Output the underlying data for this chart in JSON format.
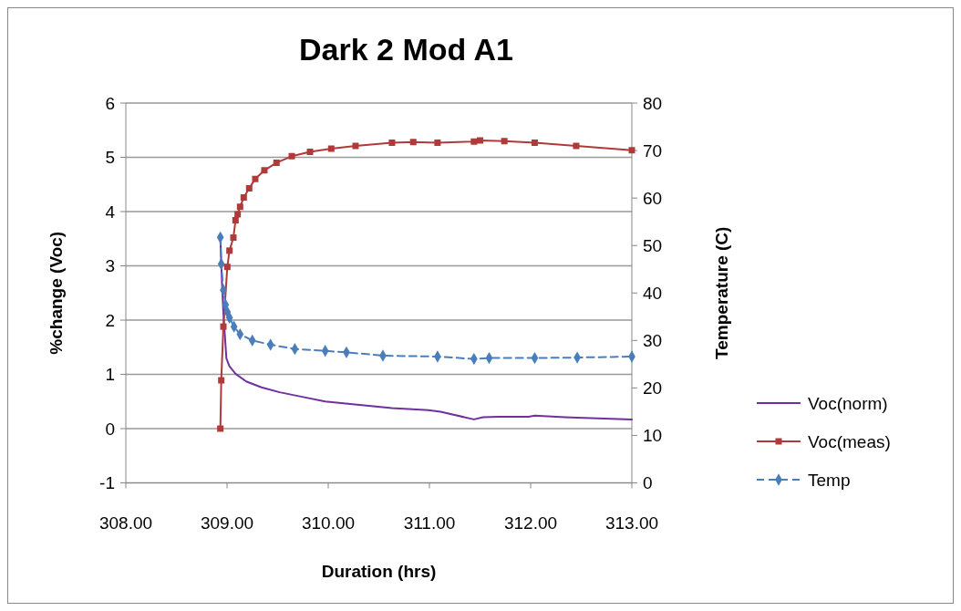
{
  "chart_data": {
    "type": "line",
    "title": "Dark 2 Mod A1",
    "xlabel": "Duration (hrs)",
    "ylabel": "%change (Voc)",
    "y2label": "Temperature (C)",
    "xlim": [
      308,
      313
    ],
    "xticks": [
      {
        "value": 308,
        "label": "308.00"
      },
      {
        "value": 309,
        "label": "309.00"
      },
      {
        "value": 310,
        "label": "310.00"
      },
      {
        "value": 311,
        "label": "311.00"
      },
      {
        "value": 312,
        "label": "312.00"
      },
      {
        "value": 313,
        "label": "313.00"
      }
    ],
    "ylim": [
      -1,
      6
    ],
    "yticks": [
      -1,
      0,
      1,
      2,
      3,
      4,
      5,
      6
    ],
    "y2lim": [
      0,
      80
    ],
    "y2ticks": [
      0,
      10,
      20,
      30,
      40,
      50,
      60,
      70,
      80
    ],
    "grid": "y",
    "legend": "right",
    "series": [
      {
        "name": "Voc(norm)",
        "color": "#7030a0",
        "marker": "none",
        "line_style": "solid",
        "x": [
          308.934,
          308.95,
          308.964,
          308.979,
          308.994,
          309.024,
          309.084,
          309.189,
          309.34,
          309.52,
          309.73,
          309.97,
          310.24,
          310.63,
          310.99,
          311.11,
          311.44,
          311.53,
          311.68,
          311.98,
          312.04,
          312.34,
          312.46,
          313
        ],
        "values": [
          3.52,
          2.69,
          2.13,
          1.71,
          1.29,
          1.15,
          1.01,
          0.87,
          0.76,
          0.67,
          0.59,
          0.5,
          0.45,
          0.38,
          0.34,
          0.31,
          0.17,
          0.21,
          0.22,
          0.22,
          0.24,
          0.21,
          0.2,
          0.17
        ]
      },
      {
        "name": "Voc(meas)",
        "color": "#b03a3a",
        "marker": "square",
        "line_style": "solid",
        "x": [
          308.934,
          308.943,
          308.964,
          309.003,
          309.024,
          309.063,
          309.084,
          309.105,
          309.129,
          309.165,
          309.219,
          309.279,
          309.369,
          309.489,
          309.64,
          309.82,
          310.03,
          310.27,
          310.63,
          310.84,
          311.08,
          311.44,
          311.5,
          311.74,
          312.04,
          312.45,
          313
        ],
        "values": [
          0,
          0.89,
          1.88,
          2.98,
          3.28,
          3.52,
          3.84,
          3.95,
          4.09,
          4.26,
          4.43,
          4.6,
          4.76,
          4.9,
          5.02,
          5.1,
          5.16,
          5.21,
          5.27,
          5.28,
          5.27,
          5.29,
          5.31,
          5.3,
          5.27,
          5.21,
          5.13
        ]
      },
      {
        "name": "Temp",
        "color": "#4a7ebb",
        "marker": "diamond",
        "line_style": "dashed",
        "axis": "y2",
        "x": [
          308.934,
          308.943,
          308.964,
          308.985,
          309.003,
          309.024,
          309.069,
          309.129,
          309.25,
          309.43,
          309.67,
          309.97,
          310.18,
          310.54,
          311.08,
          311.44,
          311.59,
          312.04,
          312.46,
          313
        ],
        "values": [
          51.7,
          46.1,
          40.6,
          37.5,
          36.0,
          34.8,
          32.9,
          31.3,
          30.0,
          29.1,
          28.2,
          27.8,
          27.5,
          26.8,
          26.6,
          26.1,
          26.3,
          26.3,
          26.4,
          26.6
        ]
      }
    ]
  }
}
